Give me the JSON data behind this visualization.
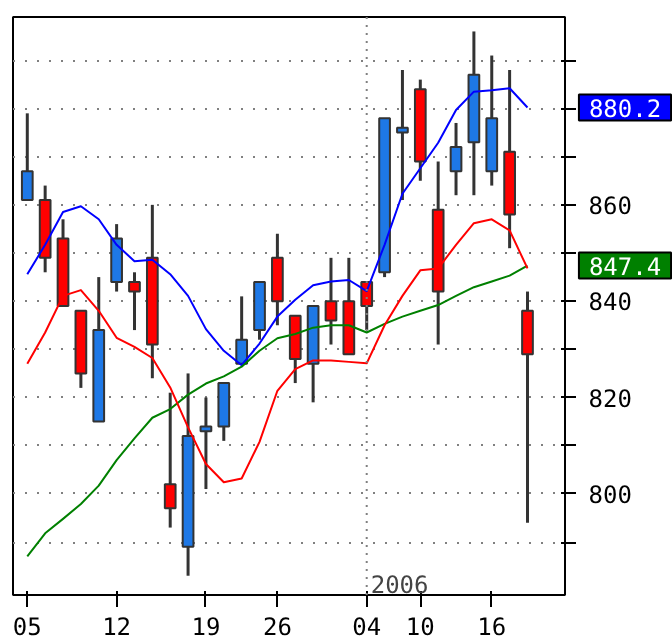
{
  "chart_data": {
    "type": "candlestick",
    "categories": [
      "05",
      null,
      null,
      null,
      null,
      "12",
      null,
      null,
      null,
      null,
      "19",
      null,
      null,
      null,
      "26",
      null,
      null,
      null,
      null,
      "04",
      null,
      null,
      "10",
      null,
      null,
      null,
      "16",
      null,
      null
    ],
    "ohlc": [
      [
        861,
        879,
        861,
        867
      ],
      [
        861,
        864,
        846,
        849
      ],
      [
        853,
        857,
        839,
        839
      ],
      [
        838,
        838,
        822,
        825
      ],
      [
        815,
        845,
        815,
        834
      ],
      [
        844,
        856,
        842,
        853
      ],
      [
        844,
        846,
        834,
        842
      ],
      [
        849,
        860,
        824,
        831
      ],
      [
        802,
        821,
        793,
        797
      ],
      [
        789,
        825,
        783,
        812
      ],
      [
        813,
        820,
        801,
        814
      ],
      [
        814,
        823,
        811,
        823
      ],
      [
        827,
        841,
        827,
        832
      ],
      [
        834,
        844,
        832,
        844
      ],
      [
        849,
        854,
        835,
        840
      ],
      [
        837,
        837,
        823,
        828
      ],
      [
        827,
        839,
        819,
        839
      ],
      [
        840,
        849,
        831,
        836
      ],
      [
        840,
        849,
        829,
        829
      ],
      [
        844,
        844,
        834,
        839
      ],
      [
        846,
        878,
        845,
        878
      ],
      [
        875,
        888,
        861,
        876
      ],
      [
        884,
        886,
        865,
        869
      ],
      [
        859,
        869,
        831,
        842
      ],
      [
        867,
        877,
        862,
        872
      ],
      [
        873,
        896,
        862,
        887
      ],
      [
        867,
        891,
        864,
        878
      ],
      [
        871,
        888,
        851,
        858
      ],
      [
        838,
        842,
        794,
        829
      ]
    ],
    "colors": [
      "#1e78e6",
      "#ff0000",
      "#ff0000",
      "#ff0000",
      "#1e78e6",
      "#1e78e6",
      "#ff0000",
      "#ff0000",
      "#ff0000",
      "#1e78e6",
      "#1e78e6",
      "#1e78e6",
      "#1e78e6",
      "#1e78e6",
      "#ff0000",
      "#ff0000",
      "#1e78e6",
      "#ff0000",
      "#ff0000",
      "#ff0000",
      "#1e78e6",
      "#1e78e6",
      "#ff0000",
      "#ff0000",
      "#1e78e6",
      "#1e78e6",
      "#1e78e6",
      "#ff0000",
      "#ff0000"
    ],
    "series": [
      {
        "type": "line",
        "color": "#0000ff",
        "values": [
          845.6,
          851.7,
          858.5,
          859.7,
          857,
          851.7,
          848.3,
          848.6,
          845.6,
          841.1,
          834.2,
          829.7,
          826.7,
          831.2,
          836.8,
          840.3,
          843.3,
          844.1,
          844.4,
          842.1,
          851.7,
          862.3,
          867.6,
          872.9,
          879.7,
          883.5,
          883.8,
          884.2,
          880.2
        ]
      },
      {
        "type": "line",
        "color": "#008000",
        "values": [
          787,
          791.8,
          794.8,
          797.9,
          801.7,
          807,
          811.5,
          815.8,
          817.6,
          820.6,
          822.9,
          824.4,
          826.4,
          829.7,
          832.3,
          833.2,
          834.5,
          835,
          835,
          833.5,
          835.3,
          836.8,
          838,
          839.2,
          841.1,
          842.9,
          844.1,
          845.3,
          847.4
        ]
      },
      {
        "type": "line",
        "color": "#ff0000",
        "values": [
          827,
          833.5,
          841.1,
          842.3,
          838,
          832.4,
          830.5,
          828.2,
          822.1,
          813.8,
          806.2,
          802.4,
          803.2,
          810.8,
          821.4,
          825.9,
          827.7,
          827.7,
          827.4,
          827.1,
          835,
          841.1,
          846.4,
          846.8,
          851.7,
          856.2,
          857,
          854.7,
          846.8
        ]
      }
    ],
    "ylim": [
      779,
      899
    ],
    "yticks": [
      {
        "value": 790,
        "label": null
      },
      800,
      {
        "value": 810,
        "label": null
      },
      820,
      {
        "value": 830,
        "label": null
      },
      840,
      {
        "value": 850,
        "label": null
      },
      860,
      {
        "value": 870,
        "label": null
      },
      {
        "value": 880,
        "label": null
      },
      {
        "value": 890,
        "label": null
      }
    ],
    "grid": "y",
    "ref_lines": [
      {
        "axis": "x",
        "value": "04",
        "label": "2006",
        "line_style": "dotted",
        "color": "#808080"
      }
    ],
    "annotations": [
      "880.2",
      "847.4"
    ]
  }
}
